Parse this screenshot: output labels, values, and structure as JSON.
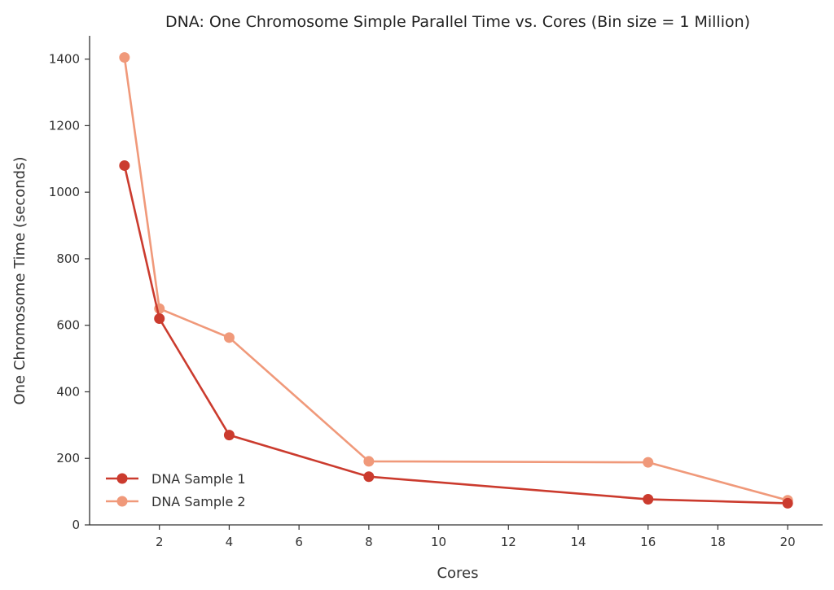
{
  "chart_data": {
    "type": "line",
    "title": "DNA: One Chromosome Simple Parallel Time vs. Cores (Bin size = 1 Million)",
    "xlabel": "Cores",
    "ylabel": "One Chromosome Time (seconds)",
    "xlim": [
      0,
      21
    ],
    "ylim": [
      0,
      1470
    ],
    "x_ticks": [
      2,
      4,
      6,
      8,
      10,
      12,
      14,
      16,
      18,
      20
    ],
    "y_ticks": [
      0,
      200,
      400,
      600,
      800,
      1000,
      1200,
      1400
    ],
    "grid": false,
    "legend_position": "lower-left",
    "series": [
      {
        "name": "DNA Sample 1",
        "color": "#cb3b2e",
        "points": [
          [
            1,
            1080
          ],
          [
            2,
            620
          ],
          [
            4,
            270
          ],
          [
            8,
            145
          ],
          [
            16,
            77
          ],
          [
            20,
            65
          ]
        ]
      },
      {
        "name": "DNA Sample 2",
        "color": "#f0997a",
        "points": [
          [
            1,
            1405
          ],
          [
            2,
            650
          ],
          [
            4,
            563
          ],
          [
            8,
            191
          ],
          [
            16,
            188
          ],
          [
            20,
            74
          ]
        ]
      }
    ]
  }
}
